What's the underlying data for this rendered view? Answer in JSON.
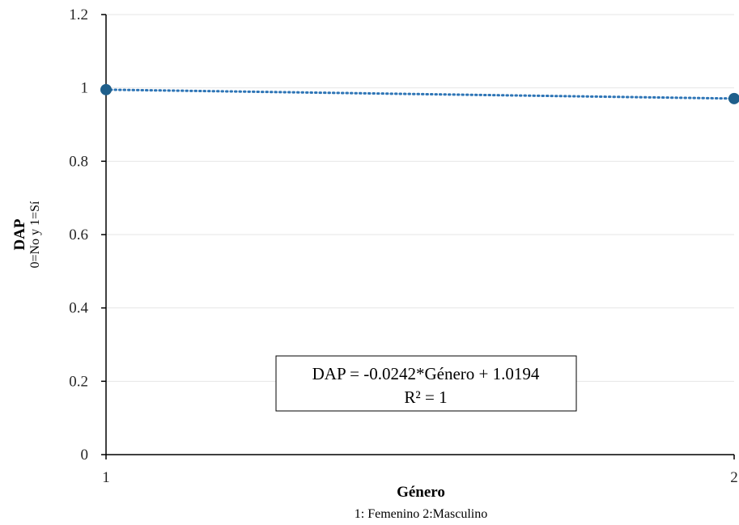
{
  "chart_data": {
    "type": "scatter",
    "xlabel": "Género",
    "xlabel_sub": "1: Femenino 2:Masculino",
    "ylabel": "DAP",
    "ylabel_sub": "0=No y 1=Sí",
    "xlim": [
      1,
      2
    ],
    "ylim": [
      0,
      1.2
    ],
    "x_ticks": [
      "1",
      "2"
    ],
    "y_ticks": [
      "0",
      "0.2",
      "0.4",
      "0.6",
      "0.8",
      "1",
      "1.2"
    ],
    "grid": true,
    "series": [
      {
        "x": [
          1,
          2
        ],
        "y": [
          0.9952,
          0.971
        ],
        "color": "#1f5f8b"
      }
    ],
    "trendline": {
      "type": "linear",
      "slope": -0.0242,
      "intercept": 1.0194,
      "style": "dotted",
      "color": "#2e75b6"
    },
    "annotation": {
      "equation": "DAP = -0.0242*Género + 1.0194",
      "r2": "R² = 1"
    }
  }
}
